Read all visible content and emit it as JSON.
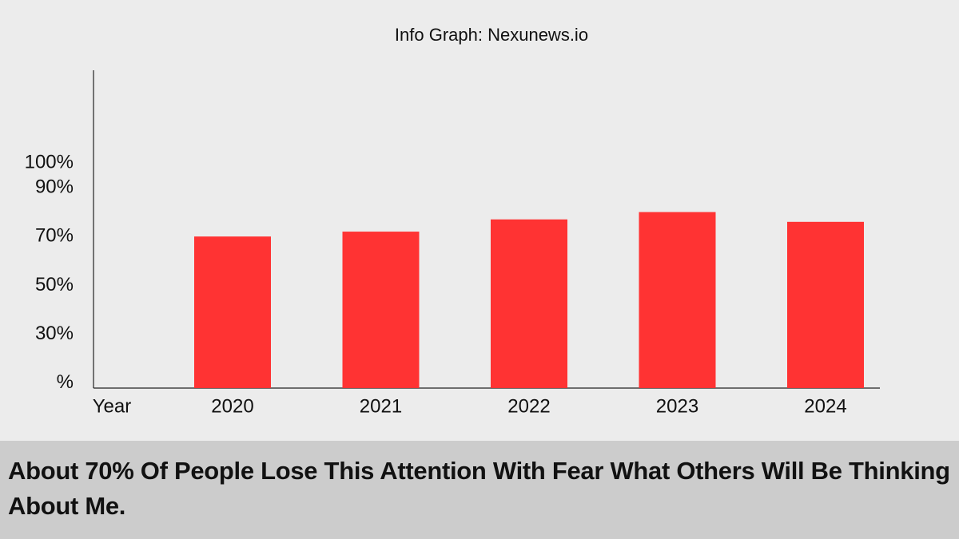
{
  "chart_data": {
    "type": "bar",
    "title": "Info Graph: Nexunews.io",
    "x_label": "Year",
    "categories": [
      "2020",
      "2021",
      "2022",
      "2023",
      "2024"
    ],
    "values": [
      70,
      72,
      77,
      80,
      76
    ],
    "color": "#ff3333",
    "ylim": [
      8,
      138
    ],
    "yticks": [
      {
        "value": 10,
        "label": "%"
      },
      {
        "value": 30,
        "label": "30%"
      },
      {
        "value": 50,
        "label": "50%"
      },
      {
        "value": 70,
        "label": "70%"
      },
      {
        "value": 90,
        "label": "90%"
      },
      {
        "value": 100,
        "label": "100%"
      }
    ],
    "grid": false,
    "caption": "About 70% Of People Lose This Attention With Fear What Others Will Be Thinking About Me."
  }
}
